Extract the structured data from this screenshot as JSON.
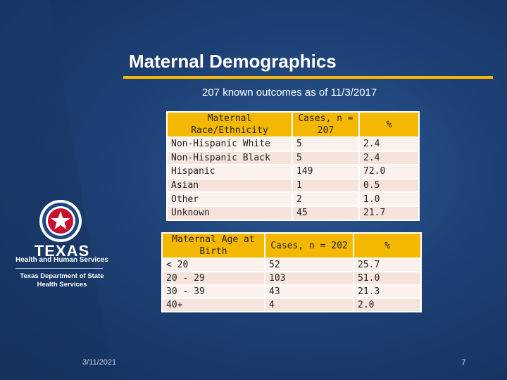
{
  "slide": {
    "title": "Maternal Demographics",
    "subtitle": "207 known outcomes as of 11/3/2017",
    "date": "3/11/2021",
    "page_number": "7"
  },
  "race_table": {
    "headers": [
      "Maternal Race/Ethnicity",
      "Cases, n = 207",
      "%"
    ],
    "rows": [
      [
        "Non-Hispanic White",
        "5",
        "2.4"
      ],
      [
        "Non-Hispanic Black",
        "5",
        "2.4"
      ],
      [
        "Hispanic",
        "149",
        "72.0"
      ],
      [
        "Asian",
        "1",
        "0.5"
      ],
      [
        "Other",
        "2",
        "1.0"
      ],
      [
        "Unknown",
        "45",
        "21.7"
      ]
    ]
  },
  "age_table": {
    "headers": [
      "Maternal Age at Birth",
      "Cases, n = 202",
      "%"
    ],
    "rows": [
      [
        "< 20",
        "52",
        "25.7"
      ],
      [
        "20 - 29",
        "103",
        "51.0"
      ],
      [
        "30 - 39",
        "43",
        "21.3"
      ],
      [
        "40+",
        "4",
        "2.0"
      ]
    ]
  },
  "logo": {
    "name": "TEXAS",
    "sub": "Health and Human Services",
    "dept_line1": "Texas Department of State",
    "dept_line2": "Health Services"
  },
  "colors": {
    "accent": "#f5b800",
    "background": "#1c3a66",
    "table_row": "#f6e4dc"
  }
}
